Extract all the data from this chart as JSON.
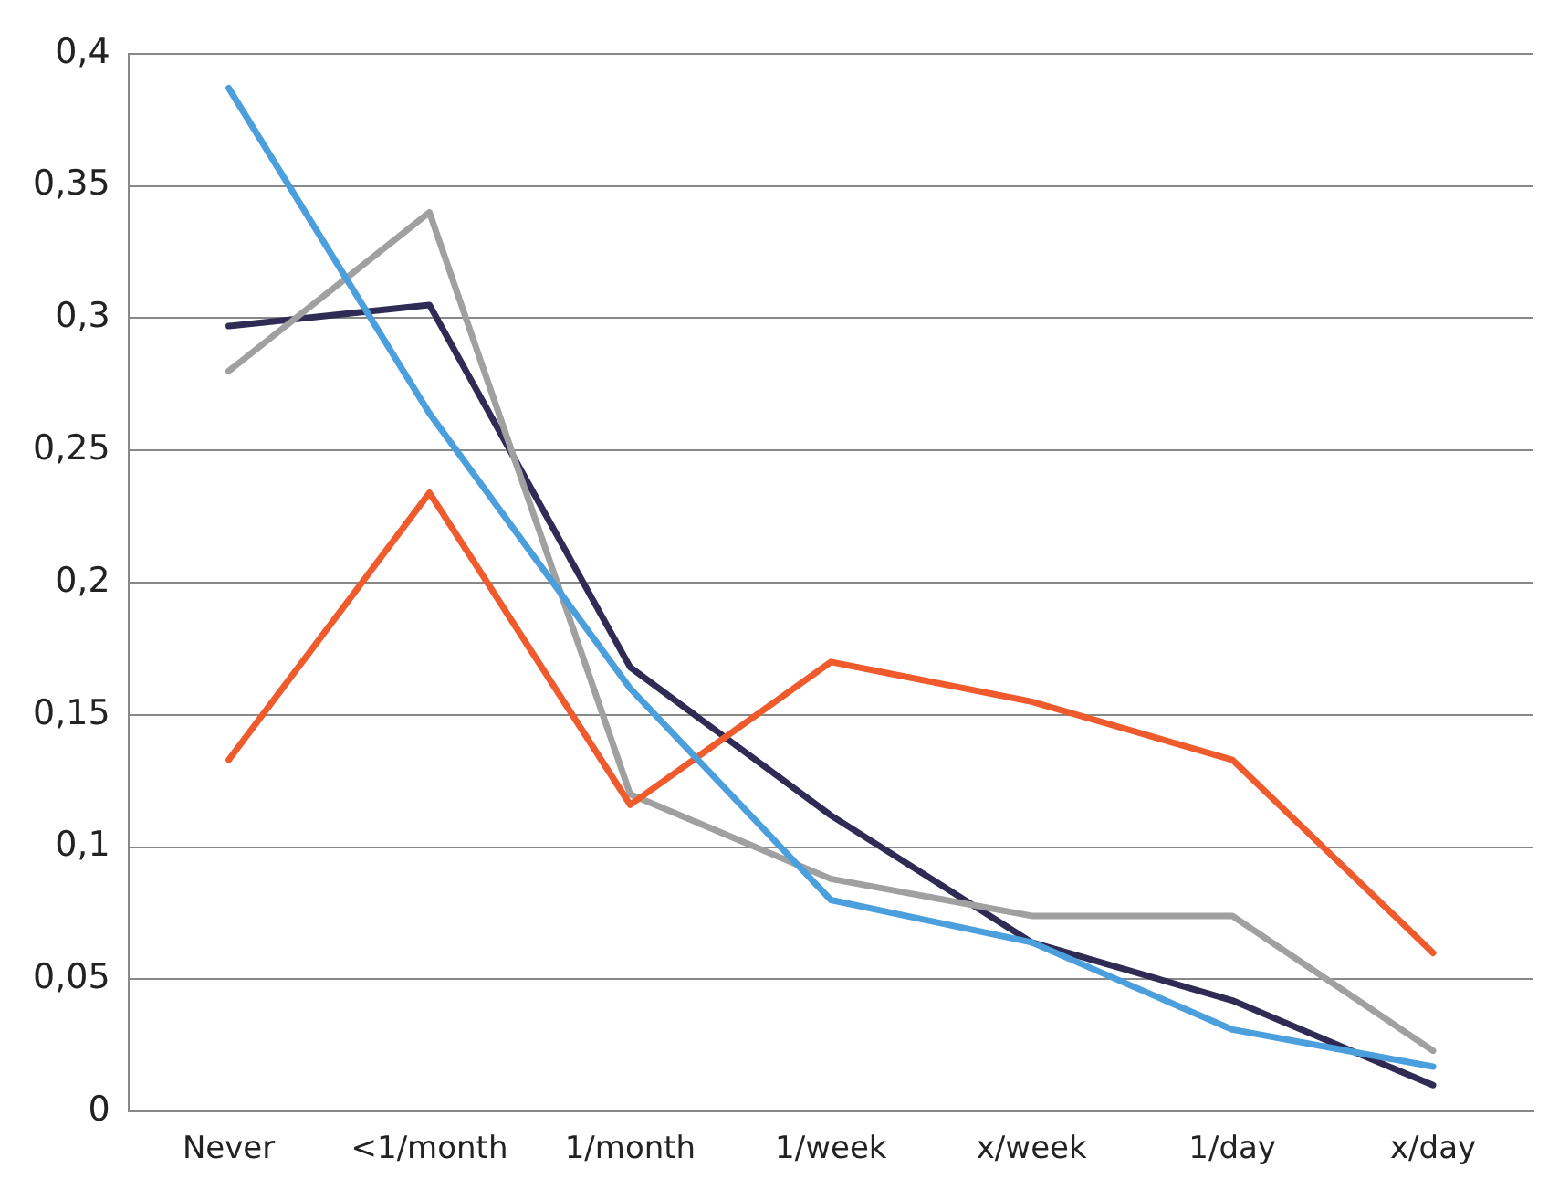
{
  "chart_data": {
    "type": "line",
    "categories": [
      "Never",
      "<1/month",
      "1/month",
      "1/week",
      "x/week",
      "1/day",
      "x/day"
    ],
    "series": [
      {
        "color": "#4a9fdc",
        "values": [
          0.387,
          0.264,
          0.16,
          0.08,
          0.064,
          0.031,
          0.017
        ]
      },
      {
        "color": "#ef5b2c",
        "values": [
          0.133,
          0.234,
          0.116,
          0.17,
          0.155,
          0.133,
          0.06
        ]
      },
      {
        "color": "#a0a0a0",
        "values": [
          0.28,
          0.34,
          0.12,
          0.088,
          0.074,
          0.074,
          0.023
        ]
      },
      {
        "color": "#302b54",
        "values": [
          0.297,
          0.305,
          0.168,
          0.112,
          0.064,
          0.042,
          0.01
        ]
      }
    ],
    "ylim": [
      0,
      0.4
    ],
    "yticks": [
      {
        "value": 0,
        "label": "0"
      },
      {
        "value": 0.05,
        "label": "0,05"
      },
      {
        "value": 0.1,
        "label": "0,1"
      },
      {
        "value": 0.15,
        "label": "0,15"
      },
      {
        "value": 0.2,
        "label": "0,2"
      },
      {
        "value": 0.25,
        "label": "0,25"
      },
      {
        "value": 0.3,
        "label": "0,3"
      },
      {
        "value": 0.35,
        "label": "0,35"
      },
      {
        "value": 0.4,
        "label": "0,4"
      }
    ],
    "grid": "y",
    "legend": false,
    "marker": "none",
    "line_style": "solid"
  }
}
